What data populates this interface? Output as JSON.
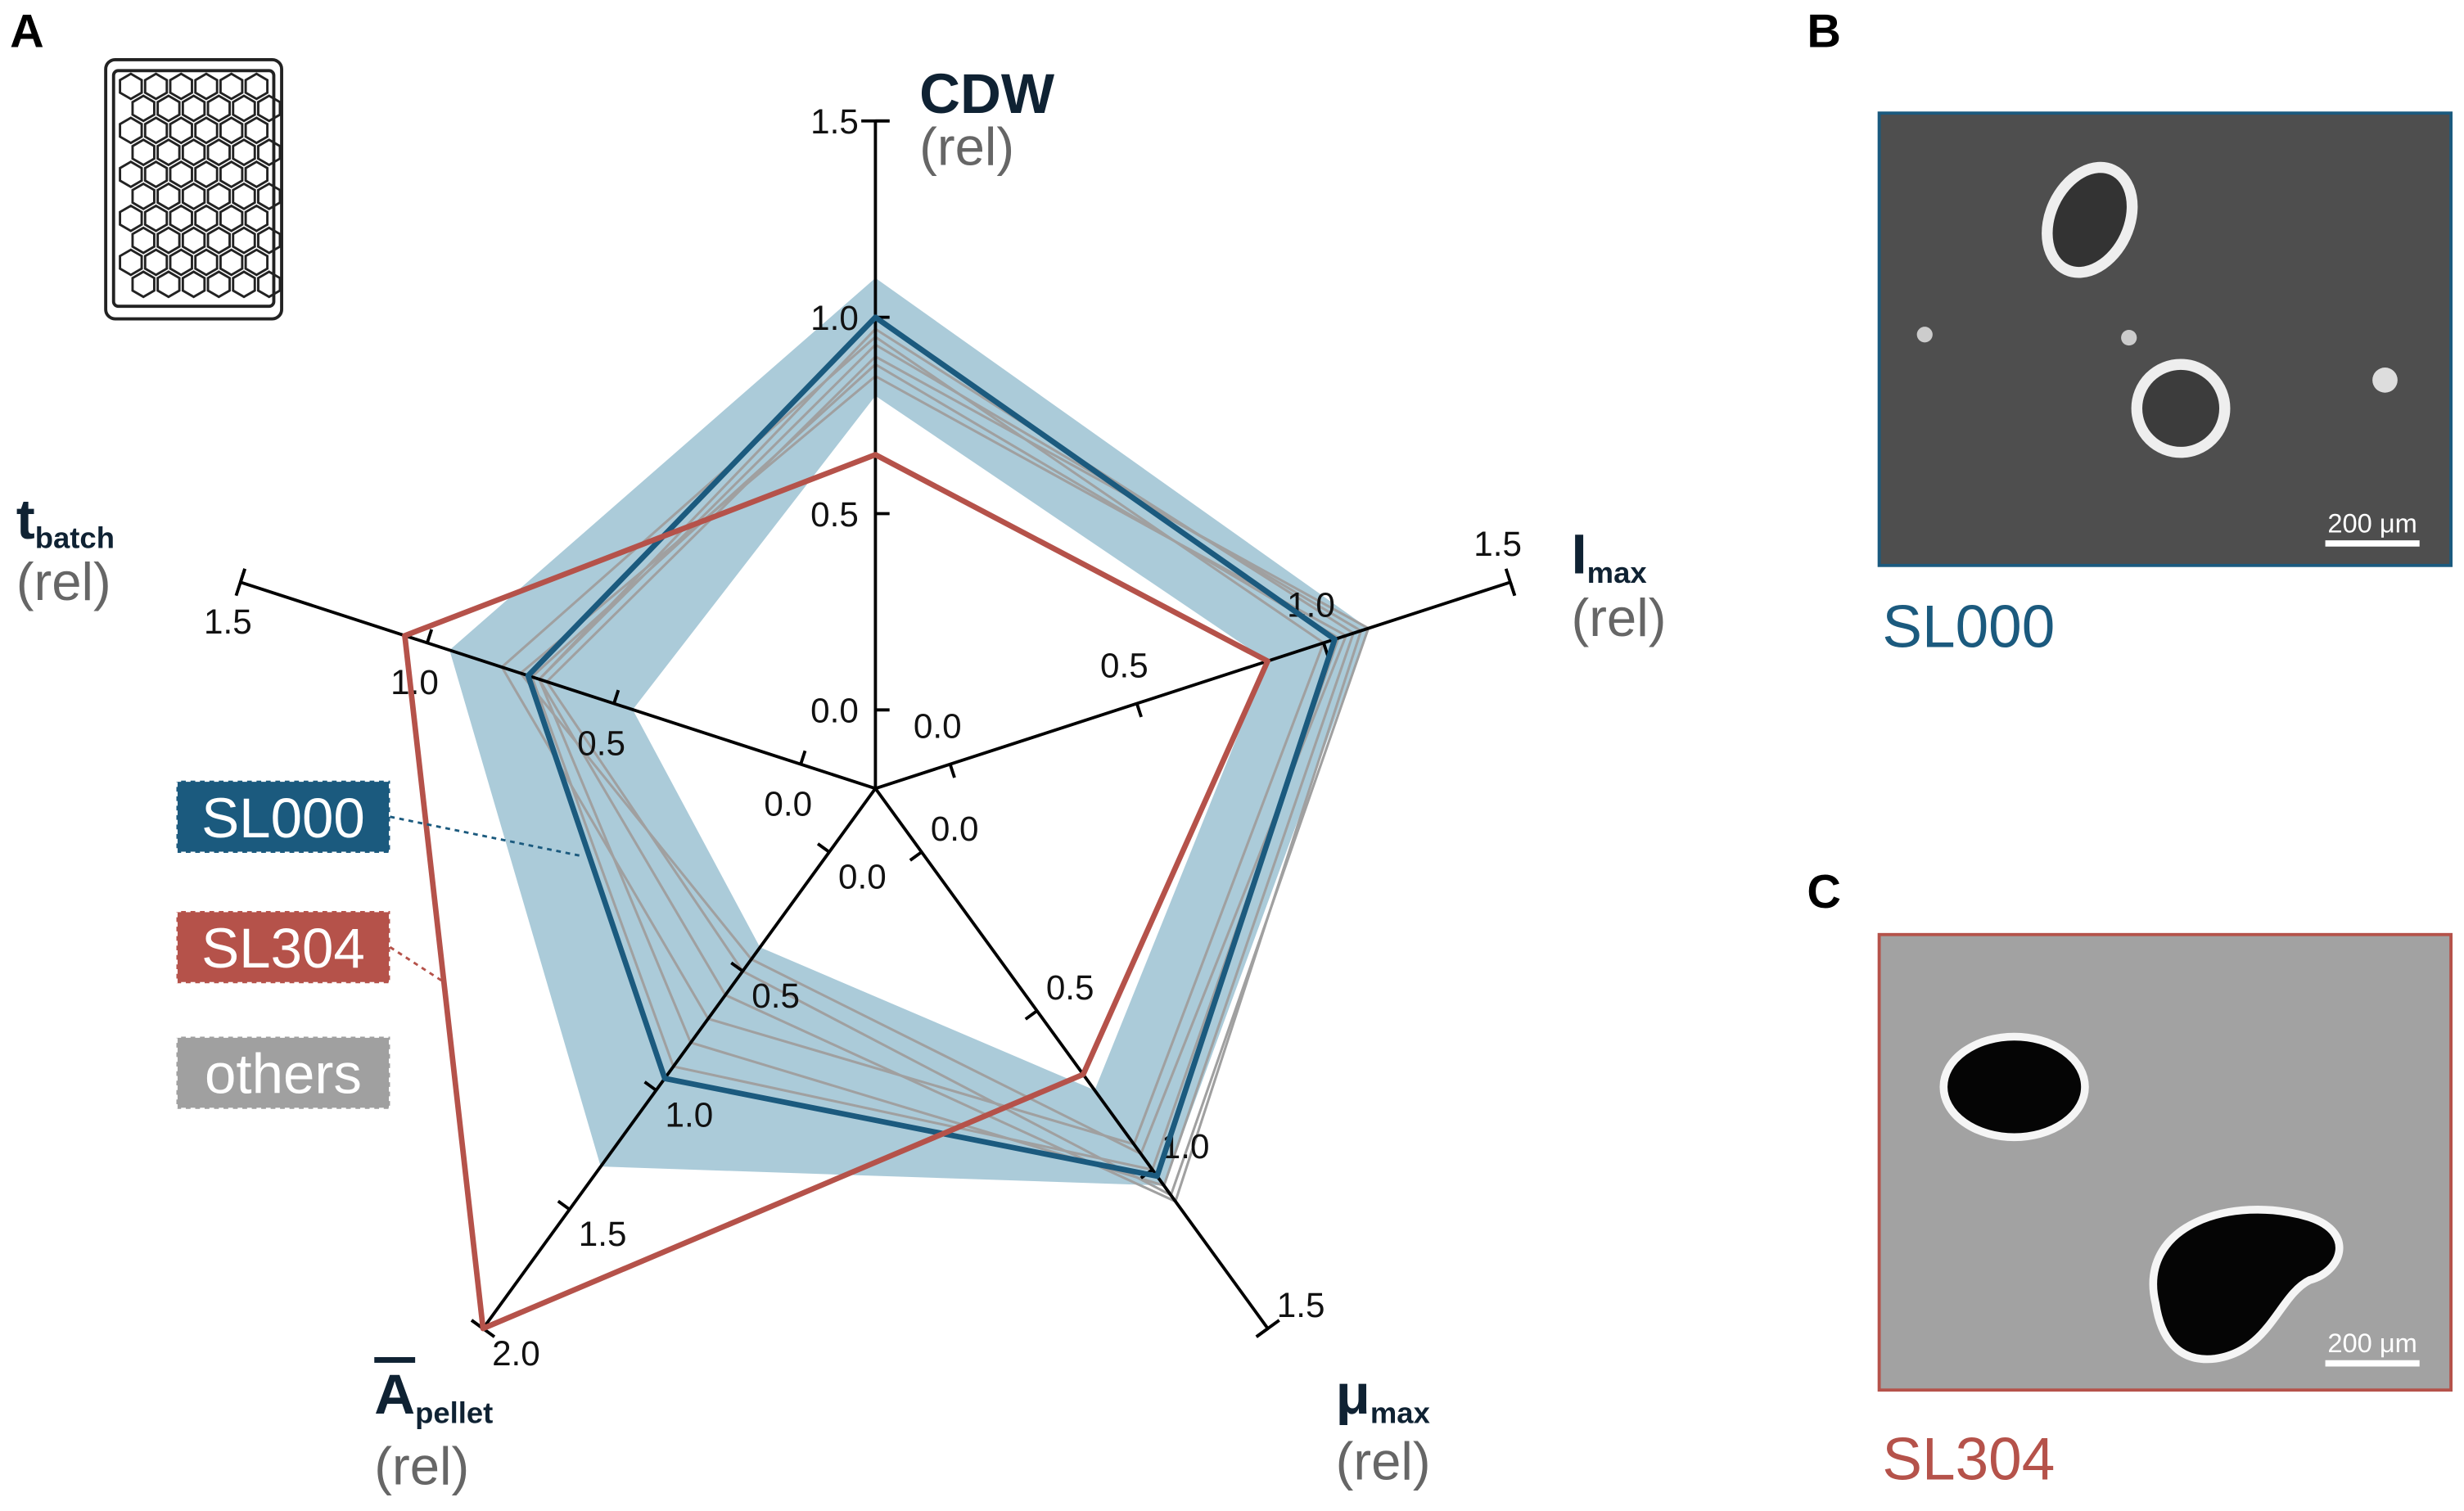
{
  "chart_data": {
    "type": "radar",
    "panel": "A",
    "axes": [
      {
        "name": {
          "main": "CDW"
        },
        "unit": "(rel)",
        "lim": [
          0,
          1.5
        ],
        "ticks": [
          {
            "value": 0,
            "label": "0.0"
          },
          {
            "value": 0.5,
            "label": "0.5"
          },
          {
            "value": 1,
            "label": "1.0"
          },
          {
            "value": 1.5,
            "label": "1.5"
          }
        ]
      },
      {
        "name": {
          "main": "I",
          "sub": "max"
        },
        "unit": "(rel)",
        "lim": [
          0,
          1.5
        ],
        "ticks": [
          {
            "value": 0,
            "label": "0.0"
          },
          {
            "value": 0.5,
            "label": "0.5"
          },
          {
            "value": 1,
            "label": "1.0"
          },
          {
            "value": 1.5,
            "label": "1.5"
          }
        ]
      },
      {
        "name": {
          "main": "μ",
          "sub": "max"
        },
        "unit": "(rel)",
        "lim": [
          0,
          1.5
        ],
        "ticks": [
          {
            "value": 0,
            "label": "0.0"
          },
          {
            "value": 0.5,
            "label": "0.5"
          },
          {
            "value": 1,
            "label": "1.0"
          },
          {
            "value": 1.5,
            "label": "1.5"
          }
        ]
      },
      {
        "name": {
          "main": "A",
          "sub": "pellet"
        },
        "unit": "(rel)",
        "lim": [
          0,
          2.0
        ],
        "ticks": [
          {
            "value": 0,
            "label": "0.0"
          },
          {
            "value": 0.5,
            "label": "0.5"
          },
          {
            "value": 1,
            "label": "1.0"
          },
          {
            "value": 1.5,
            "label": "1.5"
          },
          {
            "value": 2,
            "label": "2.0"
          }
        ]
      },
      {
        "name": {
          "main": "t",
          "sub": "batch"
        },
        "unit": "(rel)",
        "lim": [
          0,
          1.5
        ],
        "ticks": [
          {
            "value": 0,
            "label": "0.0"
          },
          {
            "value": 0.5,
            "label": "0.5"
          },
          {
            "value": 1,
            "label": "1.0"
          },
          {
            "value": 1.5,
            "label": "1.5"
          }
        ]
      }
    ],
    "band": {
      "color": "#8fb9cc",
      "outer": [
        1.1,
        1.12,
        1.05,
        1.32,
        0.94
      ],
      "inner": [
        0.8,
        0.85,
        0.75,
        0.4,
        0.45
      ]
    },
    "others": {
      "name": "others",
      "color": "#a0a0a0",
      "lines": [
        [
          0.97,
          1.08,
          1.05,
          0.8,
          0.7
        ],
        [
          0.93,
          1.1,
          1.1,
          0.6,
          0.7
        ],
        [
          0.9,
          1.12,
          1.08,
          0.5,
          0.68
        ],
        [
          0.85,
          1.06,
          0.95,
          0.45,
          0.75
        ],
        [
          0.95,
          1.0,
          0.92,
          0.7,
          0.8
        ],
        [
          0.88,
          1.04,
          1.0,
          0.9,
          0.72
        ]
      ]
    },
    "series": [
      {
        "name": "SL000",
        "color": "#1b5a7e",
        "values": [
          1.0,
          1.03,
          1.02,
          0.95,
          0.73
        ]
      },
      {
        "name": "SL304",
        "color": "#b5524a",
        "values": [
          0.65,
          0.85,
          0.7,
          2.0,
          1.06
        ]
      }
    ]
  },
  "images": [
    {
      "panel": "B",
      "caption": "SL000",
      "scale_bar": "200 μm",
      "color": "#1b5a7e"
    },
    {
      "panel": "C",
      "caption": "SL304",
      "scale_bar": "200 μm",
      "color": "#b5524a"
    }
  ]
}
